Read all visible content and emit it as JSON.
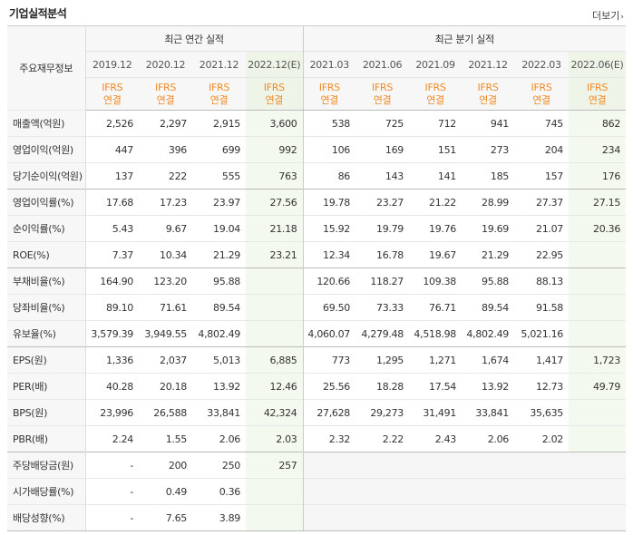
{
  "header": {
    "title": "기업실적분석",
    "more": "더보기",
    "more_arrow": "›"
  },
  "table": {
    "row_header": "주요재무정보",
    "group_annual": "최근 연간 실적",
    "group_quarter": "최근 분기 실적",
    "periods": [
      "2019.12",
      "2020.12",
      "2021.12",
      "2022.12(E)",
      "2021.03",
      "2021.06",
      "2021.09",
      "2021.12",
      "2022.03",
      "2022.06(E)"
    ],
    "basis_top": "IFRS",
    "basis_bottom": "연결",
    "rows": [
      {
        "label": "매출액(억원)",
        "values": [
          "2,526",
          "2,297",
          "2,915",
          "3,600",
          "538",
          "725",
          "712",
          "941",
          "745",
          "862"
        ]
      },
      {
        "label": "영업이익(억원)",
        "values": [
          "447",
          "396",
          "699",
          "992",
          "106",
          "169",
          "151",
          "273",
          "204",
          "234"
        ]
      },
      {
        "label": "당기순이익(억원)",
        "values": [
          "137",
          "222",
          "555",
          "763",
          "86",
          "143",
          "141",
          "185",
          "157",
          "176"
        ]
      },
      {
        "label": "영업이익률(%)",
        "values": [
          "17.68",
          "17.23",
          "23.97",
          "27.56",
          "19.78",
          "23.27",
          "21.22",
          "28.99",
          "27.37",
          "27.15"
        ]
      },
      {
        "label": "순이익률(%)",
        "values": [
          "5.43",
          "9.67",
          "19.04",
          "21.18",
          "15.92",
          "19.79",
          "19.76",
          "19.69",
          "21.07",
          "20.36"
        ]
      },
      {
        "label": "ROE(%)",
        "values": [
          "7.37",
          "10.34",
          "21.29",
          "23.21",
          "12.34",
          "16.78",
          "19.67",
          "21.29",
          "22.95",
          ""
        ]
      },
      {
        "label": "부채비율(%)",
        "values": [
          "164.90",
          "123.20",
          "95.88",
          "",
          "120.66",
          "118.27",
          "109.38",
          "95.88",
          "88.13",
          ""
        ]
      },
      {
        "label": "당좌비율(%)",
        "values": [
          "89.10",
          "71.61",
          "89.54",
          "",
          "69.50",
          "73.33",
          "76.71",
          "89.54",
          "91.58",
          ""
        ]
      },
      {
        "label": "유보율(%)",
        "values": [
          "3,579.39",
          "3,949.55",
          "4,802.49",
          "",
          "4,060.07",
          "4,279.48",
          "4,518.98",
          "4,802.49",
          "5,021.16",
          ""
        ]
      },
      {
        "label": "EPS(원)",
        "values": [
          "1,336",
          "2,037",
          "5,013",
          "6,885",
          "773",
          "1,295",
          "1,271",
          "1,674",
          "1,417",
          "1,723"
        ]
      },
      {
        "label": "PER(배)",
        "values": [
          "40.28",
          "20.18",
          "13.92",
          "12.46",
          "25.56",
          "18.28",
          "17.54",
          "13.92",
          "12.73",
          "49.79"
        ]
      },
      {
        "label": "BPS(원)",
        "values": [
          "23,996",
          "26,588",
          "33,841",
          "42,324",
          "27,628",
          "29,273",
          "31,491",
          "33,841",
          "35,635",
          ""
        ]
      },
      {
        "label": "PBR(배)",
        "values": [
          "2.24",
          "1.55",
          "2.06",
          "2.03",
          "2.32",
          "2.22",
          "2.43",
          "2.06",
          "2.02",
          ""
        ]
      },
      {
        "label": "주당배당금(원)",
        "values": [
          "-",
          "200",
          "250",
          "257",
          "",
          "",
          "",
          "",
          "",
          ""
        ]
      },
      {
        "label": "시가배당률(%)",
        "values": [
          "-",
          "0.49",
          "0.36",
          "",
          "",
          "",
          "",
          "",
          "",
          ""
        ]
      },
      {
        "label": "배당성향(%)",
        "values": [
          "-",
          "7.65",
          "3.89",
          "",
          "",
          "",
          "",
          "",
          "",
          ""
        ]
      }
    ]
  }
}
